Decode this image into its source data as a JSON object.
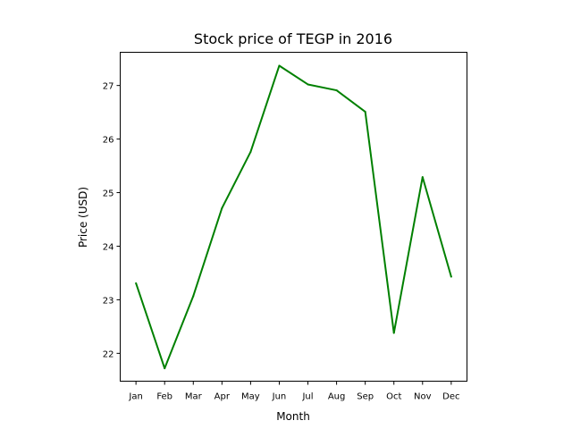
{
  "chart_data": {
    "type": "line",
    "title": "Stock price of TEGP in 2016",
    "xlabel": "Month",
    "ylabel": "Price (USD)",
    "categories": [
      "Jan",
      "Feb",
      "Mar",
      "Apr",
      "May",
      "Jun",
      "Jul",
      "Aug",
      "Sep",
      "Oct",
      "Nov",
      "Dec"
    ],
    "series": [
      {
        "name": "",
        "color": "#008000",
        "values": [
          23.31,
          21.72,
          23.07,
          24.71,
          25.76,
          27.37,
          27.02,
          26.91,
          26.51,
          22.38,
          25.29,
          23.43
        ]
      }
    ],
    "ylim": [
      21.48,
      27.62
    ],
    "yticks": [
      22,
      23,
      24,
      25,
      26,
      27
    ],
    "grid": false,
    "legend": "none"
  }
}
